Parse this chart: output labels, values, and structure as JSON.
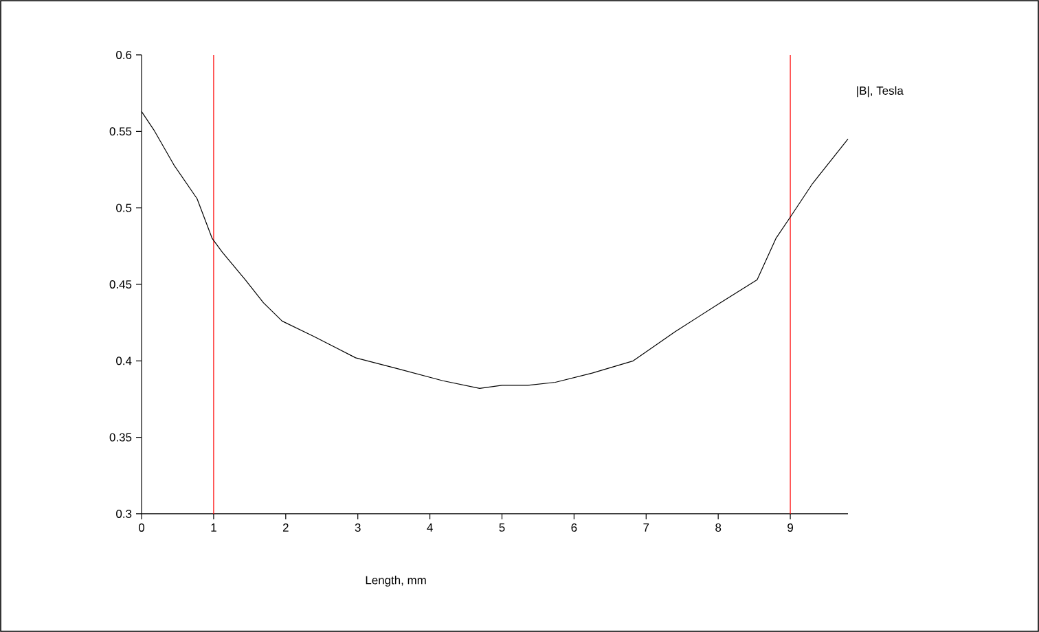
{
  "chart_data": {
    "type": "line",
    "xlabel": "Length, mm",
    "ylabel": "|B|, Tesla",
    "x": [
      0.0,
      0.17,
      0.45,
      0.77,
      0.98,
      1.12,
      1.44,
      1.69,
      1.95,
      2.39,
      2.97,
      3.54,
      4.18,
      4.69,
      5.0,
      5.36,
      5.74,
      6.25,
      6.82,
      7.4,
      8.03,
      8.54,
      8.8,
      9.0,
      9.31,
      9.8
    ],
    "series": [
      {
        "color": "#000000",
        "values": [
          0.563,
          0.551,
          0.528,
          0.506,
          0.48,
          0.471,
          0.453,
          0.438,
          0.426,
          0.416,
          0.402,
          0.395,
          0.387,
          0.382,
          0.384,
          0.384,
          0.386,
          0.392,
          0.4,
          0.419,
          0.438,
          0.453,
          0.48,
          0.494,
          0.516,
          0.545
        ]
      }
    ],
    "xlim": [
      0,
      9.8
    ],
    "ylim": [
      0.3,
      0.6
    ],
    "xticks": [
      0,
      1,
      2,
      3,
      4,
      5,
      6,
      7,
      8,
      9
    ],
    "yticks": [
      0.3,
      0.35,
      0.4,
      0.45,
      0.5,
      0.55,
      0.6
    ],
    "ref_lines": [
      {
        "axis": "x",
        "value": 1,
        "color": "#ff0000"
      },
      {
        "axis": "x",
        "value": 9,
        "color": "#ff0000"
      }
    ],
    "grid": false
  }
}
